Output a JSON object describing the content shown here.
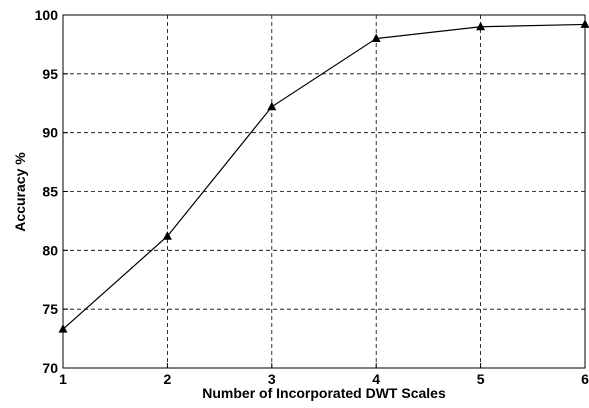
{
  "chart_data": {
    "type": "line",
    "xlabel": "Number of Incorporated DWT Scales",
    "ylabel": "Accuracy %",
    "x": [
      1,
      2,
      3,
      4,
      5,
      6
    ],
    "series": [
      {
        "color": "#000000",
        "values": [
          73.3,
          81.2,
          92.2,
          98.0,
          99.0,
          99.2
        ]
      }
    ],
    "xlim": [
      1,
      6
    ],
    "xticks": [
      1,
      2,
      3,
      4,
      5,
      6
    ],
    "ylim": [
      70,
      100
    ],
    "yticks": [
      70,
      75,
      80,
      85,
      90,
      95,
      100
    ],
    "grid": true,
    "marker": "triangle"
  }
}
